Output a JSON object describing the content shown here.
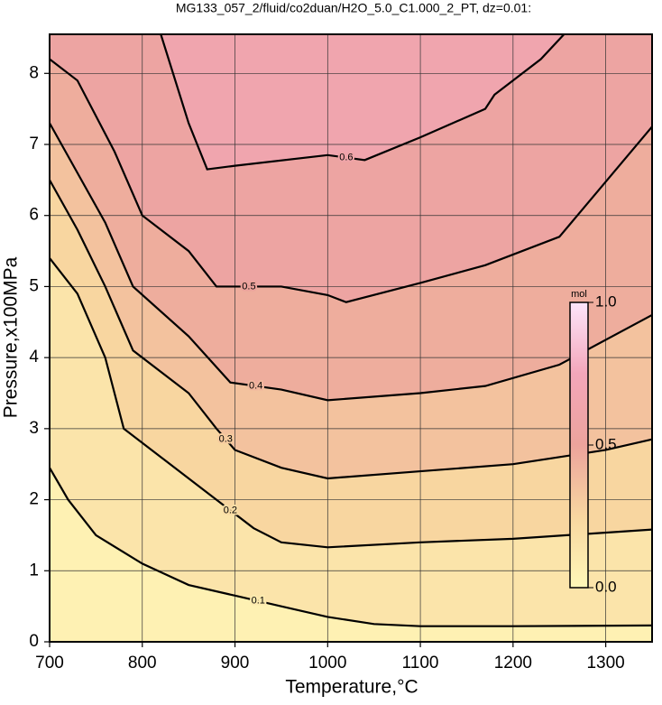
{
  "chart_data": {
    "type": "contour",
    "title": "MG133_057_2/fluid/co2duan/H2O_5.0_C1.000_2_PT, dz=0.01:",
    "x_label": "Temperature,°C",
    "y_label": "Pressure,x100MPa",
    "xlim": [
      700,
      1350
    ],
    "ylim": [
      0,
      8.55
    ],
    "xticks": [
      700,
      800,
      900,
      1000,
      1100,
      1200,
      1300
    ],
    "yticks": [
      0,
      1,
      2,
      3,
      4,
      5,
      6,
      7,
      8
    ],
    "grid": true,
    "contours": [
      {
        "level": 0.1,
        "x": [
          700,
          720,
          750,
          800,
          850,
          900,
          950,
          1000,
          1050,
          1100,
          1200,
          1350
        ],
        "y": [
          2.45,
          2.0,
          1.5,
          1.1,
          0.8,
          0.65,
          0.5,
          0.35,
          0.25,
          0.22,
          0.22,
          0.23
        ]
      },
      {
        "level": 0.2,
        "x": [
          700,
          730,
          760,
          780,
          820,
          870,
          920,
          950,
          1000,
          1100,
          1200,
          1350
        ],
        "y": [
          5.4,
          4.9,
          4.0,
          3.0,
          2.6,
          2.1,
          1.6,
          1.4,
          1.33,
          1.4,
          1.45,
          1.58
        ]
      },
      {
        "level": 0.3,
        "x": [
          700,
          730,
          760,
          790,
          850,
          880,
          900,
          950,
          1000,
          1100,
          1200,
          1300,
          1350
        ],
        "y": [
          6.5,
          5.8,
          5.0,
          4.1,
          3.5,
          3.0,
          2.7,
          2.45,
          2.3,
          2.4,
          2.5,
          2.7,
          2.85
        ]
      },
      {
        "level": 0.4,
        "x": [
          700,
          730,
          760,
          790,
          850,
          895,
          950,
          1000,
          1100,
          1170,
          1250,
          1350
        ],
        "y": [
          7.3,
          6.6,
          5.9,
          5.0,
          4.3,
          3.65,
          3.55,
          3.4,
          3.5,
          3.6,
          3.9,
          4.6
        ]
      },
      {
        "level": 0.5,
        "x": [
          700,
          730,
          770,
          800,
          850,
          880,
          950,
          1000,
          1020,
          1100,
          1170,
          1250,
          1350
        ],
        "y": [
          8.2,
          7.9,
          6.9,
          6.0,
          5.5,
          5.0,
          5.0,
          4.88,
          4.78,
          5.05,
          5.3,
          5.7,
          7.25
        ]
      },
      {
        "level": 0.6,
        "x": [
          820,
          850,
          870,
          900,
          1000,
          1040,
          1100,
          1170,
          1180,
          1230,
          1255
        ],
        "y": [
          8.55,
          7.3,
          6.65,
          6.7,
          6.85,
          6.78,
          7.1,
          7.5,
          7.7,
          8.2,
          8.55
        ]
      }
    ],
    "colorbar": {
      "label": "mol",
      "lim": [
        0,
        1
      ],
      "ticks": [
        {
          "value": 0,
          "label": "0.0"
        },
        {
          "value": 0.5,
          "label": "0.5"
        },
        {
          "value": 1,
          "label": "1.0"
        }
      ],
      "stops": [
        0,
        0.25,
        0.5,
        0.75,
        1
      ],
      "colors": [
        "#fff8b8",
        "#f8d6a0",
        "#eca39c",
        "#f3a6ba",
        "#fde6fb"
      ]
    }
  }
}
